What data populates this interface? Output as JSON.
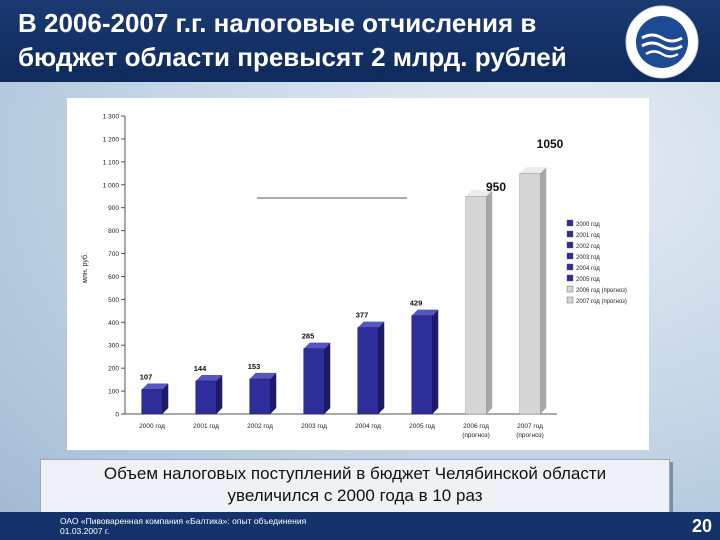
{
  "header": {
    "title_line1": "В 2006-2007 г.г. налоговые отчисления в",
    "title_line2": "бюджет области превысят 2 млрд. рублей"
  },
  "chart_data": {
    "type": "bar",
    "ylabel": "млн. руб.",
    "ylim": [
      0,
      1300
    ],
    "yticks": [
      "0",
      "100",
      "200",
      "300",
      "400",
      "500",
      "600",
      "700",
      "800",
      "900",
      "1 000",
      "1 100",
      "1 200",
      "1 300"
    ],
    "categories": [
      "2000 год",
      "2001 год",
      "2002 год",
      "2003 год",
      "2004 год",
      "2005 год",
      "2006 год",
      "2007 год"
    ],
    "category_sublabels": [
      "",
      "",
      "",
      "",
      "",
      "",
      "(прогноз)",
      "(прогноз)"
    ],
    "values": [
      107,
      144,
      153,
      285,
      377,
      429,
      950,
      1050
    ],
    "value_labels": [
      "107",
      "144",
      "153",
      "285",
      "377",
      "429",
      "950",
      "1050"
    ],
    "bar_colors": [
      "#2e2e9a",
      "#2e2e9a",
      "#2e2e9a",
      "#2e2e9a",
      "#2e2e9a",
      "#2e2e9a",
      "#d6d6d6",
      "#d6d6d6"
    ],
    "legend": [
      "2000 год",
      "2001 год",
      "2002 год",
      "2003 год",
      "2004 год",
      "2005 год",
      "2006 год (прогноз)",
      "2007 год (прогноз)"
    ],
    "legend_placement": "right",
    "grid": false
  },
  "caption": {
    "line1": "Объем налоговых поступлений в бюджет Челябинской области",
    "line2": "увеличился с 2000 года в 10 раз"
  },
  "footer": {
    "line1": "ОАО «Пивоваренная компания «Балтика»: опыт объединения",
    "line2": "01.03.2007 г.",
    "page_number": "20"
  },
  "colors": {
    "header_bg": "#14336a",
    "bar_actual": "#2e2e9a",
    "bar_forecast": "#d6d6d6"
  }
}
